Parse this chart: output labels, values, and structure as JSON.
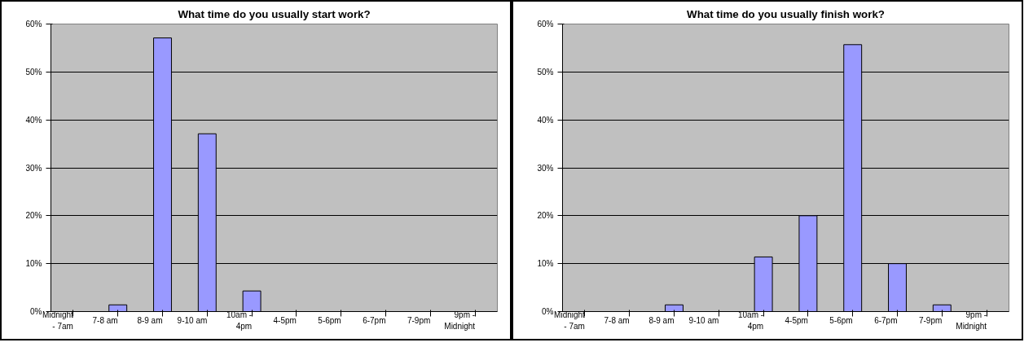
{
  "chart_data": [
    {
      "type": "bar",
      "title": "What time do you usually start work?",
      "categories": [
        "Midnight - 7am",
        "7-8 am",
        "8-9 am",
        "9-10 am",
        "10am - 4pm",
        "4-5pm",
        "5-6pm",
        "6-7pm",
        "7-9pm",
        "9pm - Midnight"
      ],
      "values": [
        0,
        1.4,
        57.1,
        37.1,
        4.3,
        0,
        0,
        0,
        0,
        0
      ],
      "color": "#9999ff",
      "ylim": [
        0,
        60
      ],
      "yticks": [
        {
          "value": 0,
          "label": "0%"
        },
        {
          "value": 10,
          "label": "10%"
        },
        {
          "value": 20,
          "label": "20%"
        },
        {
          "value": 30,
          "label": "30%"
        },
        {
          "value": 40,
          "label": "40%"
        },
        {
          "value": 50,
          "label": "50%"
        },
        {
          "value": 60,
          "label": "60%"
        }
      ],
      "grid": "y"
    },
    {
      "type": "bar",
      "title": "What time do you usually finish work?",
      "categories": [
        "Midnight - 7am",
        "7-8 am",
        "8-9 am",
        "9-10 am",
        "10am - 4pm",
        "4-5pm",
        "5-6pm",
        "6-7pm",
        "7-9pm",
        "9pm - Midnight"
      ],
      "values": [
        0,
        0,
        1.4,
        0,
        11.4,
        20,
        55.7,
        10,
        1.4,
        0
      ],
      "color": "#9999ff",
      "ylim": [
        0,
        60
      ],
      "yticks": [
        {
          "value": 0,
          "label": "0%"
        },
        {
          "value": 10,
          "label": "10%"
        },
        {
          "value": 20,
          "label": "20%"
        },
        {
          "value": 30,
          "label": "30%"
        },
        {
          "value": 40,
          "label": "40%"
        },
        {
          "value": 50,
          "label": "50%"
        },
        {
          "value": 60,
          "label": "60%"
        }
      ],
      "grid": "y"
    }
  ]
}
